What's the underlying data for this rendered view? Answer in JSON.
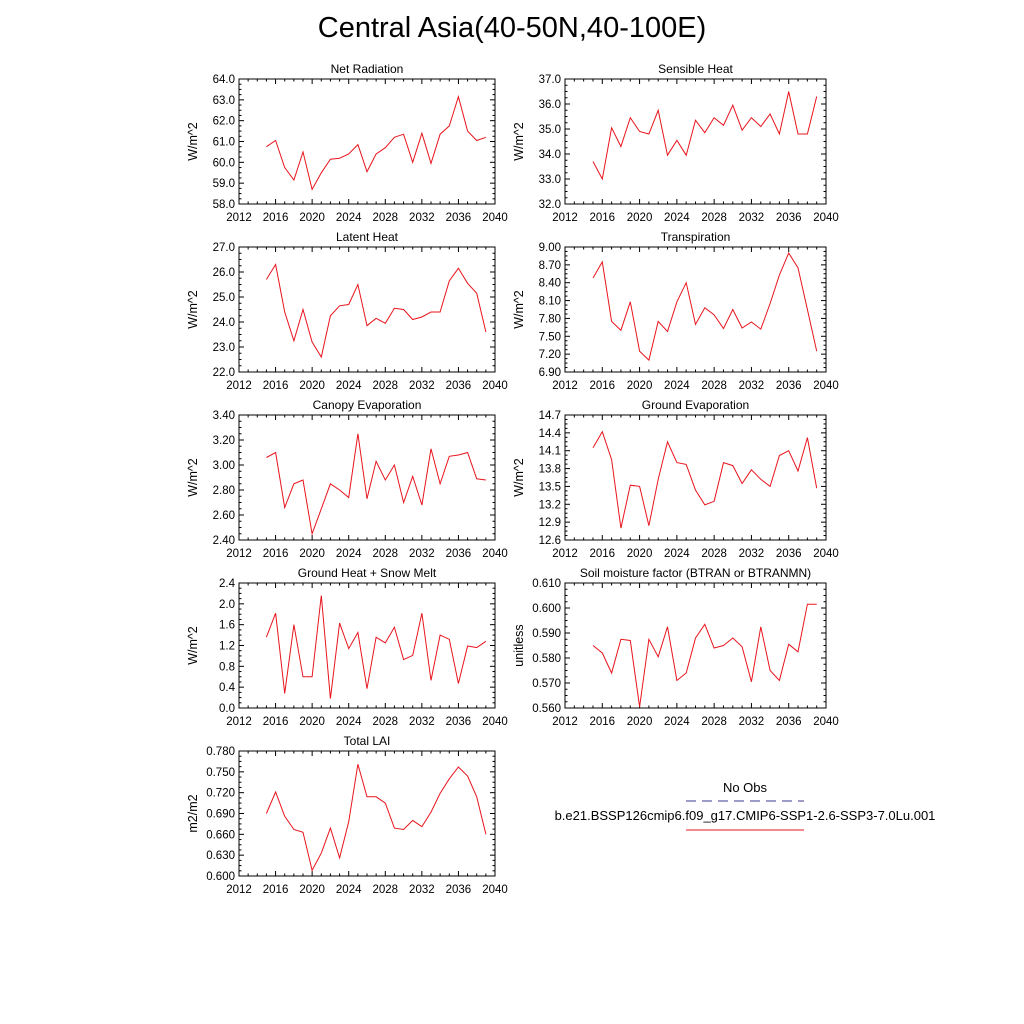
{
  "title": "Central Asia(40-50N,40-100E)",
  "colors": {
    "model": "#e8141c",
    "obs": "#3a3a8c",
    "axis": "#000000"
  },
  "legend": {
    "obs_label": "No Obs",
    "model_label": "b.e21.BSSP126cmip6.f09_g17.CMIP6-SSP1-2.6-SSP3-7.0Lu.001"
  },
  "chart_data": [
    {
      "type": "line",
      "title": "Net Radiation",
      "ylabel": "W/m^2",
      "xlim": [
        2012,
        2040
      ],
      "xticks": [
        "2012",
        "2016",
        "2020",
        "2024",
        "2028",
        "2032",
        "2036",
        "2040"
      ],
      "ylim": [
        58.0,
        64.0
      ],
      "yticks": [
        "58.0",
        "59.0",
        "60.0",
        "61.0",
        "62.0",
        "63.0",
        "64.0"
      ],
      "x": [
        2015,
        2016,
        2017,
        2018,
        2019,
        2020,
        2021,
        2022,
        2023,
        2024,
        2025,
        2026,
        2027,
        2028,
        2029,
        2030,
        2031,
        2032,
        2033,
        2034,
        2035,
        2036,
        2037,
        2038,
        2039
      ],
      "series": [
        {
          "values": [
            60.75,
            61.05,
            59.75,
            59.15,
            60.5,
            58.7,
            59.5,
            60.15,
            60.2,
            60.4,
            60.85,
            59.55,
            60.4,
            60.7,
            61.2,
            61.35,
            60.0,
            61.4,
            59.95,
            61.35,
            61.75,
            63.15,
            61.5,
            61.05,
            61.2
          ]
        }
      ]
    },
    {
      "type": "line",
      "title": "Sensible Heat",
      "ylabel": "W/m^2",
      "xlim": [
        2012,
        2040
      ],
      "xticks": [
        "2012",
        "2016",
        "2020",
        "2024",
        "2028",
        "2032",
        "2036",
        "2040"
      ],
      "ylim": [
        32.0,
        37.0
      ],
      "yticks": [
        "32.0",
        "33.0",
        "34.0",
        "35.0",
        "36.0",
        "37.0"
      ],
      "x": [
        2015,
        2016,
        2017,
        2018,
        2019,
        2020,
        2021,
        2022,
        2023,
        2024,
        2025,
        2026,
        2027,
        2028,
        2029,
        2030,
        2031,
        2032,
        2033,
        2034,
        2035,
        2036,
        2037,
        2038,
        2039
      ],
      "series": [
        {
          "values": [
            33.7,
            33.0,
            35.05,
            34.3,
            35.45,
            34.9,
            34.8,
            35.75,
            33.95,
            34.55,
            33.95,
            35.35,
            34.85,
            35.45,
            35.15,
            35.95,
            34.95,
            35.45,
            35.1,
            35.6,
            34.8,
            36.5,
            34.8,
            34.8,
            36.3
          ]
        }
      ]
    },
    {
      "type": "line",
      "title": "Latent Heat",
      "ylabel": "W/m^2",
      "xlim": [
        2012,
        2040
      ],
      "xticks": [
        "2012",
        "2016",
        "2020",
        "2024",
        "2028",
        "2032",
        "2036",
        "2040"
      ],
      "ylim": [
        22.0,
        27.0
      ],
      "yticks": [
        "22.0",
        "23.0",
        "24.0",
        "25.0",
        "26.0",
        "27.0"
      ],
      "x": [
        2015,
        2016,
        2017,
        2018,
        2019,
        2020,
        2021,
        2022,
        2023,
        2024,
        2025,
        2026,
        2027,
        2028,
        2029,
        2030,
        2031,
        2032,
        2033,
        2034,
        2035,
        2036,
        2037,
        2038,
        2039
      ],
      "series": [
        {
          "values": [
            25.7,
            26.3,
            24.4,
            23.25,
            24.5,
            23.2,
            22.6,
            24.25,
            24.65,
            24.7,
            25.5,
            23.85,
            24.15,
            23.95,
            24.55,
            24.5,
            24.1,
            24.2,
            24.4,
            24.4,
            25.65,
            26.15,
            25.55,
            25.15,
            23.6
          ]
        }
      ]
    },
    {
      "type": "line",
      "title": "Transpiration",
      "ylabel": "W/m^2",
      "xlim": [
        2012,
        2040
      ],
      "xticks": [
        "2012",
        "2016",
        "2020",
        "2024",
        "2028",
        "2032",
        "2036",
        "2040"
      ],
      "ylim": [
        6.9,
        9.0
      ],
      "yticks": [
        "6.90",
        "7.20",
        "7.50",
        "7.80",
        "8.10",
        "8.40",
        "8.70",
        "9.00"
      ],
      "x": [
        2015,
        2016,
        2017,
        2018,
        2019,
        2020,
        2021,
        2022,
        2023,
        2024,
        2025,
        2026,
        2027,
        2028,
        2029,
        2030,
        2031,
        2032,
        2033,
        2034,
        2035,
        2036,
        2037,
        2038,
        2039
      ],
      "series": [
        {
          "values": [
            8.48,
            8.75,
            7.75,
            7.6,
            8.08,
            7.25,
            7.1,
            7.75,
            7.58,
            8.08,
            8.4,
            7.7,
            7.98,
            7.86,
            7.63,
            7.95,
            7.64,
            7.74,
            7.62,
            8.05,
            8.53,
            8.9,
            8.65,
            7.95,
            7.25
          ]
        }
      ]
    },
    {
      "type": "line",
      "title": "Canopy Evaporation",
      "ylabel": "W/m^2",
      "xlim": [
        2012,
        2040
      ],
      "xticks": [
        "2012",
        "2016",
        "2020",
        "2024",
        "2028",
        "2032",
        "2036",
        "2040"
      ],
      "ylim": [
        2.4,
        3.4
      ],
      "yticks": [
        "2.40",
        "2.60",
        "2.80",
        "3.00",
        "3.20",
        "3.40"
      ],
      "x": [
        2015,
        2016,
        2017,
        2018,
        2019,
        2020,
        2021,
        2022,
        2023,
        2024,
        2025,
        2026,
        2027,
        2028,
        2029,
        2030,
        2031,
        2032,
        2033,
        2034,
        2035,
        2036,
        2037,
        2038,
        2039
      ],
      "series": [
        {
          "values": [
            3.06,
            3.1,
            2.66,
            2.85,
            2.88,
            2.45,
            2.65,
            2.85,
            2.8,
            2.74,
            3.25,
            2.73,
            3.03,
            2.88,
            3.0,
            2.7,
            2.91,
            2.68,
            3.13,
            2.85,
            3.07,
            3.08,
            3.1,
            2.89,
            2.88
          ]
        }
      ]
    },
    {
      "type": "line",
      "title": "Ground Evaporation",
      "ylabel": "W/m^2",
      "xlim": [
        2012,
        2040
      ],
      "xticks": [
        "2012",
        "2016",
        "2020",
        "2024",
        "2028",
        "2032",
        "2036",
        "2040"
      ],
      "ylim": [
        12.6,
        14.7
      ],
      "yticks": [
        "12.6",
        "12.9",
        "13.2",
        "13.5",
        "13.8",
        "14.1",
        "14.4",
        "14.7"
      ],
      "x": [
        2015,
        2016,
        2017,
        2018,
        2019,
        2020,
        2021,
        2022,
        2023,
        2024,
        2025,
        2026,
        2027,
        2028,
        2029,
        2030,
        2031,
        2032,
        2033,
        2034,
        2035,
        2036,
        2037,
        2038,
        2039
      ],
      "series": [
        {
          "values": [
            14.15,
            14.42,
            13.95,
            12.8,
            13.52,
            13.5,
            12.84,
            13.62,
            14.25,
            13.9,
            13.87,
            13.44,
            13.19,
            13.25,
            13.9,
            13.85,
            13.55,
            13.78,
            13.62,
            13.5,
            14.02,
            14.1,
            13.76,
            14.32,
            13.47
          ]
        }
      ]
    },
    {
      "type": "line",
      "title": "Ground Heat + Snow Melt",
      "ylabel": "W/m^2",
      "xlim": [
        2012,
        2040
      ],
      "xticks": [
        "2012",
        "2016",
        "2020",
        "2024",
        "2028",
        "2032",
        "2036",
        "2040"
      ],
      "ylim": [
        0.0,
        2.4
      ],
      "yticks": [
        "0.0",
        "0.4",
        "0.8",
        "1.2",
        "1.6",
        "2.0",
        "2.4"
      ],
      "x": [
        2015,
        2016,
        2017,
        2018,
        2019,
        2020,
        2021,
        2022,
        2023,
        2024,
        2025,
        2026,
        2027,
        2028,
        2029,
        2030,
        2031,
        2032,
        2033,
        2034,
        2035,
        2036,
        2037,
        2038,
        2039
      ],
      "series": [
        {
          "values": [
            1.36,
            1.82,
            0.28,
            1.6,
            0.6,
            0.6,
            2.16,
            0.18,
            1.63,
            1.14,
            1.45,
            0.37,
            1.36,
            1.25,
            1.55,
            0.93,
            1.01,
            1.82,
            0.53,
            1.4,
            1.32,
            0.47,
            1.19,
            1.16,
            1.28
          ]
        }
      ]
    },
    {
      "type": "line",
      "title": "Soil moisture factor (BTRAN or BTRANMN)",
      "ylabel": "unitless",
      "xlim": [
        2012,
        2040
      ],
      "xticks": [
        "2012",
        "2016",
        "2020",
        "2024",
        "2028",
        "2032",
        "2036",
        "2040"
      ],
      "ylim": [
        0.56,
        0.61
      ],
      "yticks": [
        "0.560",
        "0.570",
        "0.580",
        "0.590",
        "0.600",
        "0.610"
      ],
      "x": [
        2015,
        2016,
        2017,
        2018,
        2019,
        2020,
        2021,
        2022,
        2023,
        2024,
        2025,
        2026,
        2027,
        2028,
        2029,
        2030,
        2031,
        2032,
        2033,
        2034,
        2035,
        2036,
        2037,
        2038,
        2039
      ],
      "series": [
        {
          "values": [
            0.585,
            0.582,
            0.574,
            0.5875,
            0.587,
            0.5605,
            0.5875,
            0.5805,
            0.5925,
            0.571,
            0.574,
            0.588,
            0.5935,
            0.584,
            0.585,
            0.588,
            0.5845,
            0.5705,
            0.5925,
            0.575,
            0.571,
            0.5855,
            0.5825,
            0.6015,
            0.6015
          ]
        }
      ]
    },
    {
      "type": "line",
      "title": "Total LAI",
      "ylabel": "m2/m2",
      "xlim": [
        2012,
        2040
      ],
      "xticks": [
        "2012",
        "2016",
        "2020",
        "2024",
        "2028",
        "2032",
        "2036",
        "2040"
      ],
      "ylim": [
        0.6,
        0.78
      ],
      "yticks": [
        "0.600",
        "0.630",
        "0.660",
        "0.690",
        "0.720",
        "0.750",
        "0.780"
      ],
      "x": [
        2015,
        2016,
        2017,
        2018,
        2019,
        2020,
        2021,
        2022,
        2023,
        2024,
        2025,
        2026,
        2027,
        2028,
        2029,
        2030,
        2031,
        2032,
        2033,
        2034,
        2035,
        2036,
        2037,
        2038,
        2039
      ],
      "series": [
        {
          "values": [
            0.69,
            0.721,
            0.686,
            0.667,
            0.663,
            0.608,
            0.633,
            0.669,
            0.626,
            0.678,
            0.761,
            0.714,
            0.714,
            0.705,
            0.669,
            0.667,
            0.68,
            0.671,
            0.692,
            0.719,
            0.74,
            0.757,
            0.744,
            0.714,
            0.66
          ]
        }
      ]
    }
  ]
}
